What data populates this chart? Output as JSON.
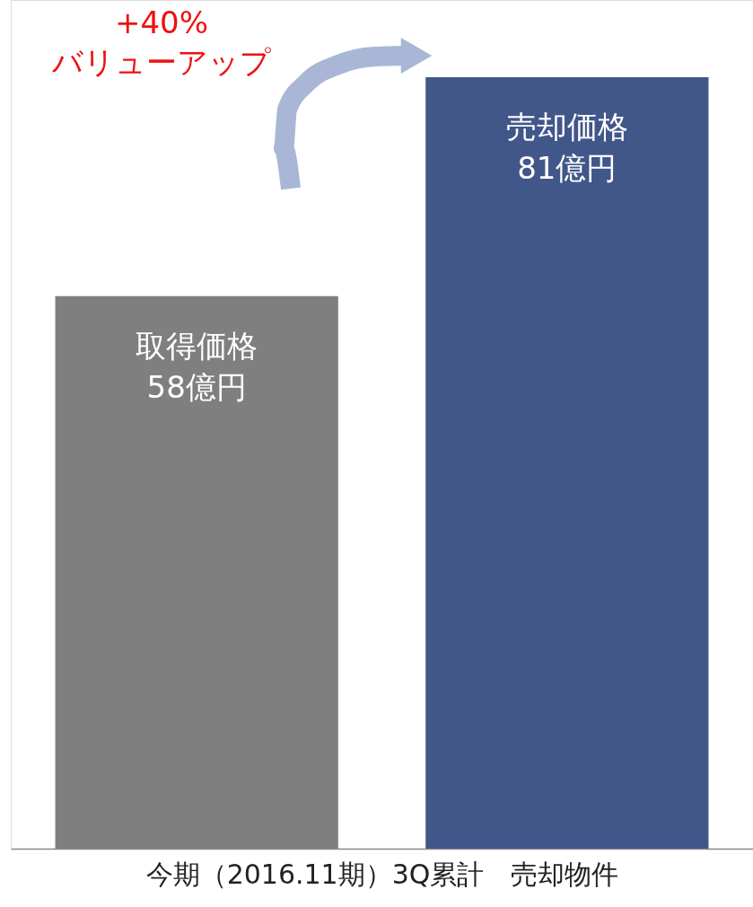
{
  "chart_data": {
    "type": "bar",
    "xlabel": "今期（2016.11期）3Q累計　売却物件",
    "categories": [
      "取得価格",
      "売却価格"
    ],
    "values": [
      58,
      81
    ],
    "colors": [
      "#7f7f7f",
      "#41578a"
    ],
    "value_labels": [
      "58億円",
      "81億円"
    ],
    "annotations": [
      "+40%\nバリューアップ"
    ]
  }
}
